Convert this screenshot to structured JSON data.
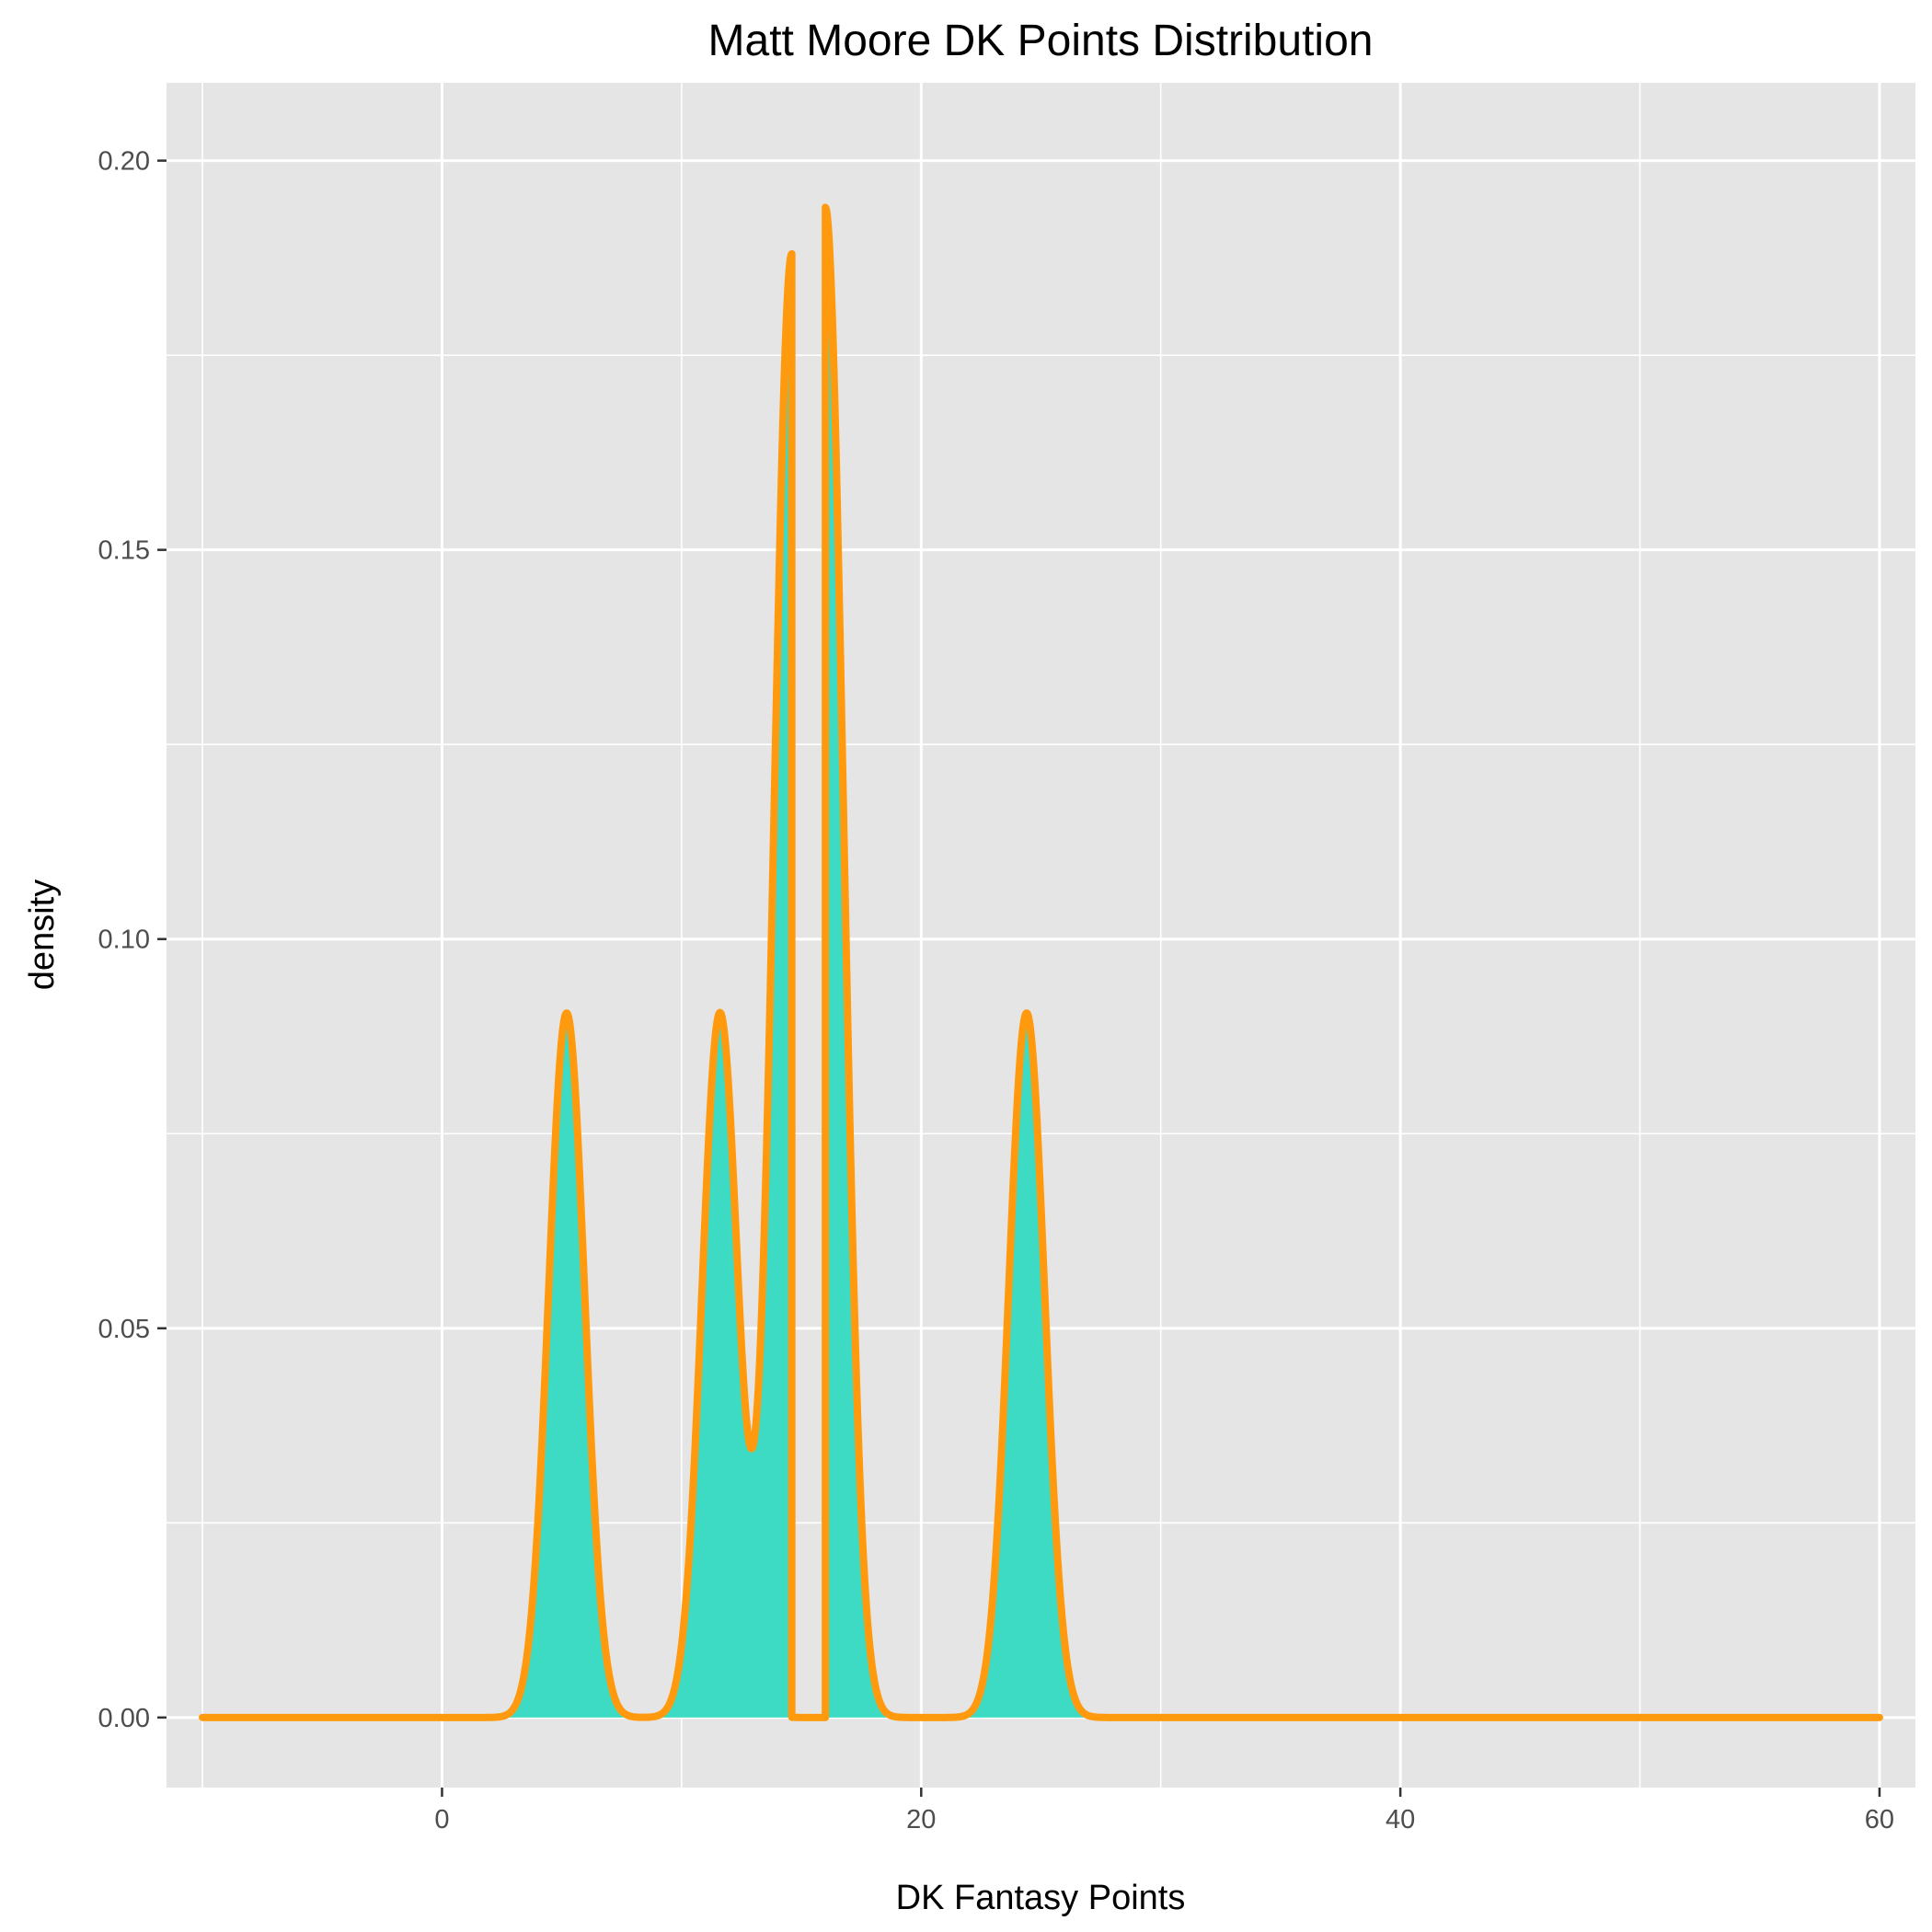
{
  "chart_data": {
    "type": "area",
    "title": "Matt Moore DK Points Distribution",
    "xlabel": "DK Fantasy Points",
    "ylabel": "density",
    "xlim": [
      -11.5,
      61.5
    ],
    "ylim": [
      -0.009,
      0.21
    ],
    "x_ticks": [
      0,
      20,
      40,
      60
    ],
    "x_tick_labels": [
      "0",
      "20",
      "40",
      "60"
    ],
    "y_ticks": [
      0.0,
      0.05,
      0.1,
      0.15,
      0.2
    ],
    "y_tick_labels": [
      "0.00",
      "0.05",
      "0.10",
      "0.15",
      "0.20"
    ],
    "x_range": [
      -10,
      60
    ],
    "grid": true,
    "panel_background": "#e5e5e5",
    "fill_color": "#3ddbc3",
    "line_color": "#ff9a0e",
    "components": [
      {
        "center": 5.2,
        "sd": 0.75,
        "peak": 0.0905
      },
      {
        "center": 11.6,
        "sd": 0.75,
        "peak": 0.0905
      },
      {
        "center": 14.6,
        "sd": 0.75,
        "peak": 0.188,
        "cut": "right"
      },
      {
        "center": 16.0,
        "sd": 0.75,
        "peak": 0.194,
        "cut": "left"
      },
      {
        "center": 24.4,
        "sd": 0.75,
        "peak": 0.0905
      }
    ]
  }
}
